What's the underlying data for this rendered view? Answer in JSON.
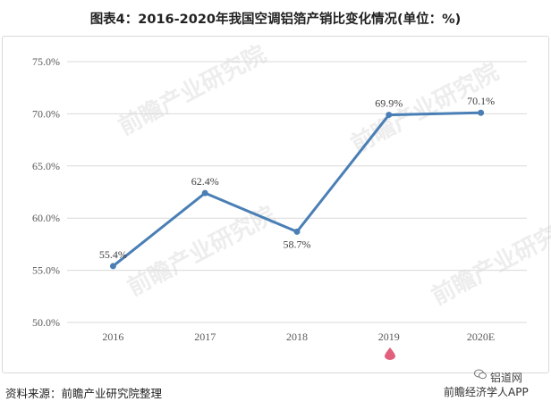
{
  "title": "图表4：2016-2020年我国空调铝箔产销比变化情况(单位：%)",
  "source": "资料来源：前瞻产业研究院整理",
  "footer": {
    "brand_top": "铝道网",
    "brand_bottom": "前瞻经济学人APP"
  },
  "watermark": "前瞻产业研究院",
  "colors": {
    "line": "#4a7fb5",
    "grid": "#d9d9d9",
    "pin": "#e0607e"
  },
  "chart_data": {
    "type": "line",
    "categories": [
      "2016",
      "2017",
      "2018",
      "2019",
      "2020E"
    ],
    "values": [
      55.4,
      62.4,
      58.7,
      69.9,
      70.1
    ],
    "labels": [
      "55.4%",
      "62.4%",
      "58.7%",
      "69.9%",
      "70.1%"
    ],
    "ylim": [
      50,
      75
    ],
    "yticks": [
      50,
      55,
      60,
      65,
      70,
      75
    ],
    "ytick_labels": [
      "50.0%",
      "55.0%",
      "60.0%",
      "65.0%",
      "70.0%",
      "75.0%"
    ],
    "grid": true,
    "legend": "none"
  }
}
